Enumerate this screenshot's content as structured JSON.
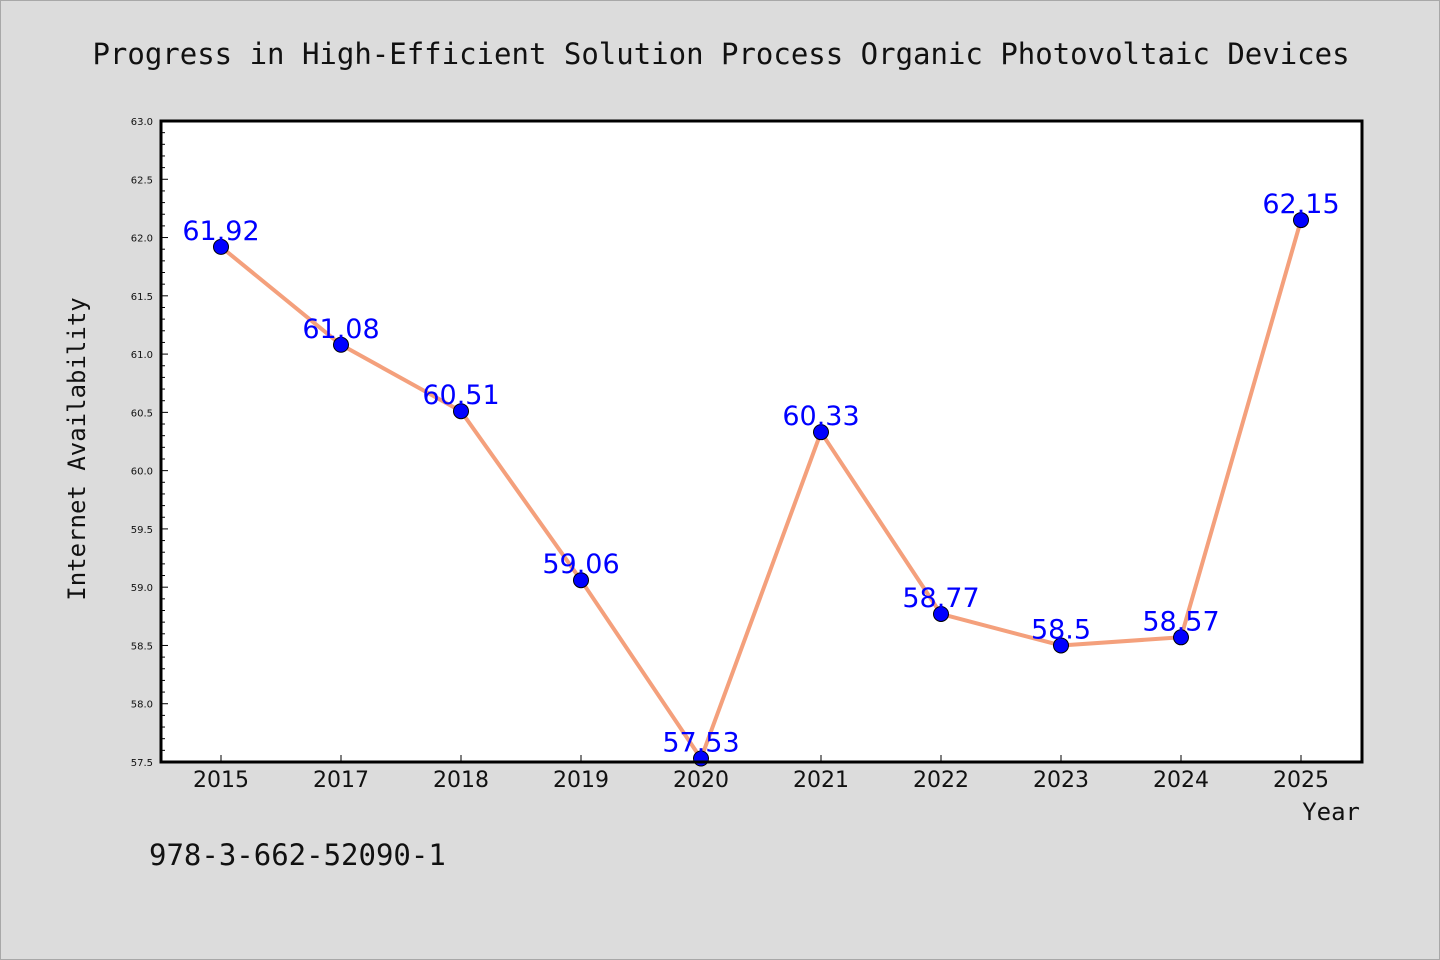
{
  "chart_data": {
    "type": "line",
    "title": "Progress in High-Efficient Solution Process Organic Photovoltaic Devices",
    "xlabel": "Year",
    "ylabel": "Internet Availability",
    "categories": [
      "2015",
      "2017",
      "2018",
      "2019",
      "2020",
      "2021",
      "2022",
      "2023",
      "2024",
      "2025"
    ],
    "series": [
      {
        "values": [
          61.92,
          61.08,
          60.51,
          59.06,
          57.53,
          60.33,
          58.77,
          58.5,
          58.57,
          62.15
        ],
        "data_labels": [
          "61.92",
          "61.08",
          "60.51",
          "59.06",
          "57.53",
          "60.33",
          "58.77",
          "58.5",
          "58.57",
          "62.15"
        ]
      }
    ],
    "ylim": [
      57.5,
      63.0
    ],
    "yticks": [
      "57.5",
      "58.0",
      "58.5",
      "59.0",
      "59.5",
      "60.0",
      "60.5",
      "61.0",
      "61.5",
      "62.0",
      "62.5",
      "63.0"
    ],
    "grid": false,
    "legend": "none",
    "colors": {
      "line": "#f4a07c",
      "marker": "#0000ff",
      "marker_edge": "#000000",
      "data_label": "#0000ff",
      "background": "#dcdcdc",
      "plot_background": "#ffffff"
    }
  },
  "footer": {
    "text": "978-3-662-52090-1"
  }
}
